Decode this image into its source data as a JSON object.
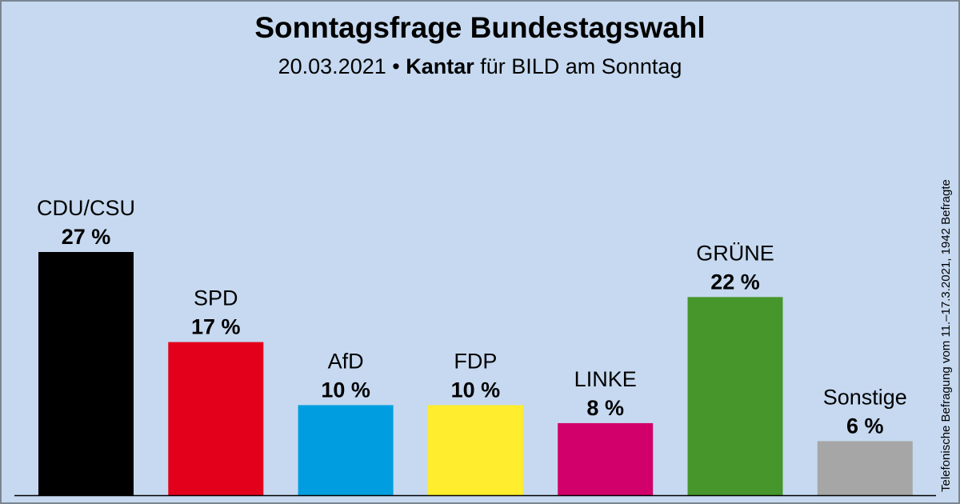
{
  "header": {
    "title": "Sonntagsfrage Bundestagswahl",
    "subtitle_date": "20.03.2021 • ",
    "subtitle_source": "Kantar",
    "subtitle_rest": " für BILD am Sonntag"
  },
  "side_note": "Telefonische Befragung vom 11.–17.3.2021, 1942 Befragte",
  "chart_data": {
    "type": "bar",
    "categories": [
      "CDU/CSU",
      "SPD",
      "AfD",
      "FDP",
      "LINKE",
      "GRÜNE",
      "Sonstige"
    ],
    "values": [
      27,
      17,
      10,
      10,
      8,
      22,
      6
    ],
    "value_labels": [
      "27 %",
      "17 %",
      "10 %",
      "10 %",
      "8 %",
      "22 %",
      "6 %"
    ],
    "colors": [
      "#000000",
      "#e3001b",
      "#009ee0",
      "#ffed2e",
      "#d2006b",
      "#46962b",
      "#a6a6a6"
    ],
    "title": "Sonntagsfrage Bundestagswahl",
    "xlabel": "",
    "ylabel": "",
    "ylim": [
      0,
      27
    ],
    "grid": false,
    "legend": "none"
  }
}
